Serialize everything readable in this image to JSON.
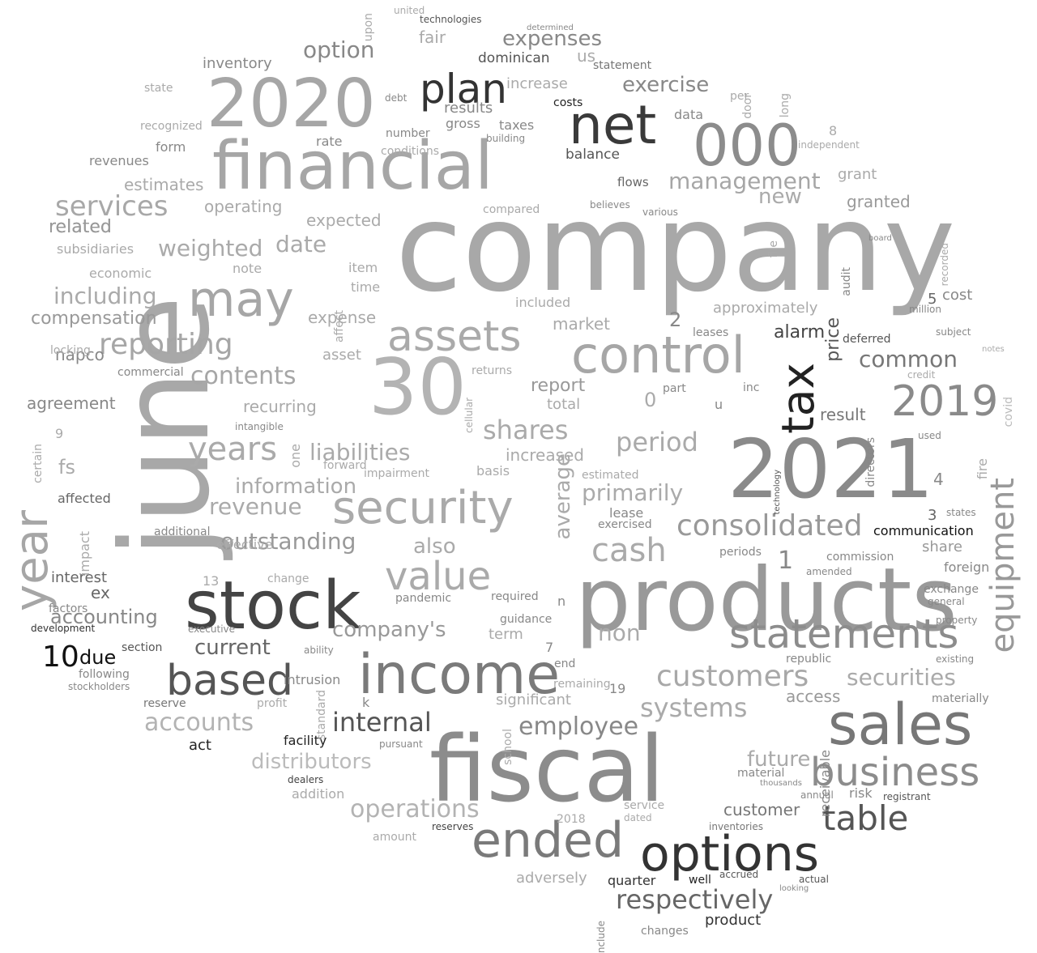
{
  "words": [
    {
      "text": "company",
      "color": "#a8a8a8"
    },
    {
      "text": "june",
      "color": "#a8a8a8"
    },
    {
      "text": "products",
      "color": "#999999"
    },
    {
      "text": "2021",
      "color": "#8a8a8a"
    },
    {
      "text": "fiscal",
      "color": "#8c8c8c"
    },
    {
      "text": "30",
      "color": "#b3b3b3"
    },
    {
      "text": "financial",
      "color": "#a6a6a6"
    },
    {
      "text": "2020",
      "color": "#a6a6a6"
    },
    {
      "text": "stock",
      "color": "#444444"
    },
    {
      "text": "income",
      "color": "#7a7a7a"
    },
    {
      "text": "sales",
      "color": "#777777"
    },
    {
      "text": "options",
      "color": "#333333"
    },
    {
      "text": "net",
      "color": "#3a3a3a"
    },
    {
      "text": "000",
      "color": "#8c8c8c"
    },
    {
      "text": "control",
      "color": "#a6a6a6"
    },
    {
      "text": "security",
      "color": "#aaaaaa"
    },
    {
      "text": "year",
      "color": "#a6a6a6"
    },
    {
      "text": "may",
      "color": "#a6a6a6"
    },
    {
      "text": "plan",
      "color": "#333333"
    },
    {
      "text": "tax",
      "color": "#222222"
    },
    {
      "text": "statements",
      "color": "#8c8c8c"
    },
    {
      "text": "ended",
      "color": "#7a7a7a"
    },
    {
      "text": "based",
      "color": "#555555"
    },
    {
      "text": "business",
      "color": "#8c8c8c"
    },
    {
      "text": "assets",
      "color": "#aaaaaa"
    },
    {
      "text": "value",
      "color": "#aaaaaa"
    },
    {
      "text": "2019",
      "color": "#8a8a8a"
    },
    {
      "text": "equipment",
      "color": "#999999"
    },
    {
      "text": "table",
      "color": "#555555"
    },
    {
      "text": "customers",
      "color": "#a8a8a8"
    },
    {
      "text": "years",
      "color": "#aaaaaa"
    },
    {
      "text": "consolidated",
      "color": "#999999"
    },
    {
      "text": "services",
      "color": "#a8a8a8"
    },
    {
      "text": "reporting",
      "color": "#a6a6a6"
    },
    {
      "text": "cash",
      "color": "#aaaaaa"
    },
    {
      "text": "systems",
      "color": "#aaaaaa"
    },
    {
      "text": "respectively",
      "color": "#666666"
    },
    {
      "text": "operations",
      "color": "#b3b3b3"
    },
    {
      "text": "accounts",
      "color": "#b3b3b3"
    },
    {
      "text": "internal",
      "color": "#555555"
    },
    {
      "text": "management",
      "color": "#a6a6a6"
    },
    {
      "text": "contents",
      "color": "#a6a6a6"
    },
    {
      "text": "period",
      "color": "#aaaaaa"
    },
    {
      "text": "securities",
      "color": "#aaaaaa"
    },
    {
      "text": "shares",
      "color": "#aaaaaa"
    },
    {
      "text": "expenses",
      "color": "#888888"
    },
    {
      "text": "exercise",
      "color": "#888888"
    },
    {
      "text": "including",
      "color": "#aaaaaa"
    },
    {
      "text": "outstanding",
      "color": "#999999"
    },
    {
      "text": "liabilities",
      "color": "#aaaaaa"
    },
    {
      "text": "employee",
      "color": "#888888"
    },
    {
      "text": "company's",
      "color": "#999999"
    },
    {
      "text": "common",
      "color": "#777777"
    },
    {
      "text": "revenue",
      "color": "#aaaaaa"
    },
    {
      "text": "date",
      "color": "#aaaaaa"
    },
    {
      "text": "weighted",
      "color": "#aaaaaa"
    },
    {
      "text": "information",
      "color": "#aaaaaa"
    },
    {
      "text": "distributors",
      "color": "#bbbbbb"
    },
    {
      "text": "option",
      "color": "#888888"
    },
    {
      "text": "average",
      "color": "#aaaaaa"
    },
    {
      "text": "future",
      "color": "#aaaaaa"
    },
    {
      "text": "primarily",
      "color": "#aaaaaa"
    },
    {
      "text": "non",
      "color": "#aaaaaa"
    },
    {
      "text": "current",
      "color": "#666666"
    },
    {
      "text": "also",
      "color": "#aaaaaa"
    },
    {
      "text": "fs",
      "color": "#aaaaaa"
    },
    {
      "text": "new",
      "color": "#aaaaaa"
    },
    {
      "text": "accounting",
      "color": "#888888"
    },
    {
      "text": "compensation",
      "color": "#999999"
    },
    {
      "text": "alarm",
      "color": "#444444"
    },
    {
      "text": "price",
      "color": "#555555"
    },
    {
      "text": "report",
      "color": "#999999"
    },
    {
      "text": "increased",
      "color": "#aaaaaa"
    },
    {
      "text": "expense",
      "color": "#aaaaaa"
    },
    {
      "text": "expected",
      "color": "#aaaaaa"
    },
    {
      "text": "market",
      "color": "#aaaaaa"
    },
    {
      "text": "approximately",
      "color": "#aaaaaa"
    },
    {
      "text": "access",
      "color": "#999999"
    },
    {
      "text": "customer",
      "color": "#777777"
    },
    {
      "text": "result",
      "color": "#777777"
    },
    {
      "text": "share",
      "color": "#999999"
    },
    {
      "text": "related",
      "color": "#999999"
    },
    {
      "text": "results",
      "color": "#888888"
    },
    {
      "text": "agreement",
      "color": "#888888"
    },
    {
      "text": "recurring",
      "color": "#aaaaaa"
    },
    {
      "text": "related",
      "color": "#999999"
    },
    {
      "text": "product",
      "color": "#333333"
    },
    {
      "text": "quarter",
      "color": "#333333"
    },
    {
      "text": "communication",
      "color": "#111111"
    },
    {
      "text": "facility",
      "color": "#222222"
    },
    {
      "text": "act",
      "color": "#222222"
    },
    {
      "text": "10",
      "color": "#111111"
    },
    {
      "text": "due",
      "color": "#111111"
    },
    {
      "text": "n",
      "color": "#888888"
    },
    {
      "text": "2018",
      "color": "#aaaaaa"
    },
    {
      "text": "1",
      "color": "#888888"
    },
    {
      "text": "0",
      "color": "#aaaaaa"
    },
    {
      "text": "2",
      "color": "#888888"
    },
    {
      "text": "4",
      "color": "#888888"
    },
    {
      "text": "3",
      "color": "#666666"
    },
    {
      "text": "5",
      "color": "#666666"
    },
    {
      "text": "7",
      "color": "#888888"
    },
    {
      "text": "8",
      "color": "#aaaaaa"
    },
    {
      "text": "9",
      "color": "#aaaaaa"
    },
    {
      "text": "13",
      "color": "#aaaaaa"
    },
    {
      "text": "19",
      "color": "#888888"
    },
    {
      "text": "k",
      "color": "#888888"
    },
    {
      "text": "u",
      "color": "#888888"
    },
    {
      "text": "us",
      "color": "#aaaaaa"
    },
    {
      "text": "fair",
      "color": "#aaaaaa"
    },
    {
      "text": "dominican",
      "color": "#555555"
    },
    {
      "text": "increase",
      "color": "#aaaaaa"
    },
    {
      "text": "statement",
      "color": "#777777"
    },
    {
      "text": "per",
      "color": "#aaaaaa"
    },
    {
      "text": "door",
      "color": "#aaaaaa"
    },
    {
      "text": "long",
      "color": "#aaaaaa"
    },
    {
      "text": "costs",
      "color": "#222222"
    },
    {
      "text": "taxes",
      "color": "#888888"
    },
    {
      "text": "gross",
      "color": "#888888"
    },
    {
      "text": "debt",
      "color": "#888888"
    },
    {
      "text": "number",
      "color": "#888888"
    },
    {
      "text": "conditions",
      "color": "#aaaaaa"
    },
    {
      "text": "building",
      "color": "#888888"
    },
    {
      "text": "balance",
      "color": "#555555"
    },
    {
      "text": "flows",
      "color": "#666666"
    },
    {
      "text": "data",
      "color": "#888888"
    },
    {
      "text": "independent",
      "color": "#aaaaaa"
    },
    {
      "text": "grant",
      "color": "#aaaaaa"
    },
    {
      "text": "granted",
      "color": "#999999"
    },
    {
      "text": "board",
      "color": "#888888"
    },
    {
      "text": "compared",
      "color": "#aaaaaa"
    },
    {
      "text": "believes",
      "color": "#888888"
    },
    {
      "text": "various",
      "color": "#888888"
    },
    {
      "text": "file",
      "color": "#aaaaaa"
    },
    {
      "text": "audit",
      "color": "#888888"
    },
    {
      "text": "cost",
      "color": "#888888"
    },
    {
      "text": "million",
      "color": "#888888"
    },
    {
      "text": "recorded",
      "color": "#aaaaaa"
    },
    {
      "text": "deferred",
      "color": "#555555"
    },
    {
      "text": "subject",
      "color": "#888888"
    },
    {
      "text": "credit",
      "color": "#aaaaaa"
    },
    {
      "text": "notes",
      "color": "#aaaaaa"
    },
    {
      "text": "used",
      "color": "#888888"
    },
    {
      "text": "covid",
      "color": "#bbbbbb"
    },
    {
      "text": "fire",
      "color": "#aaaaaa"
    },
    {
      "text": "states",
      "color": "#888888"
    },
    {
      "text": "foreign",
      "color": "#888888"
    },
    {
      "text": "commission",
      "color": "#888888"
    },
    {
      "text": "amended",
      "color": "#888888"
    },
    {
      "text": "exchange",
      "color": "#888888"
    },
    {
      "text": "general",
      "color": "#888888"
    },
    {
      "text": "property",
      "color": "#888888"
    },
    {
      "text": "existing",
      "color": "#888888"
    },
    {
      "text": "materially",
      "color": "#888888"
    },
    {
      "text": "republic",
      "color": "#888888"
    },
    {
      "text": "directors",
      "color": "#888888"
    },
    {
      "text": "risk",
      "color": "#888888"
    },
    {
      "text": "annual",
      "color": "#888888"
    },
    {
      "text": "registrant",
      "color": "#555555"
    },
    {
      "text": "thousands",
      "color": "#888888"
    },
    {
      "text": "material",
      "color": "#888888"
    },
    {
      "text": "receivable",
      "color": "#888888"
    },
    {
      "text": "inventories",
      "color": "#777777"
    },
    {
      "text": "service",
      "color": "#aaaaaa"
    },
    {
      "text": "dated",
      "color": "#aaaaaa"
    },
    {
      "text": "accrued",
      "color": "#555555"
    },
    {
      "text": "actual",
      "color": "#555555"
    },
    {
      "text": "well",
      "color": "#222222"
    },
    {
      "text": "looking",
      "color": "#888888"
    },
    {
      "text": "changes",
      "color": "#888888"
    },
    {
      "text": "adversely",
      "color": "#aaaaaa"
    },
    {
      "text": "amount",
      "color": "#aaaaaa"
    },
    {
      "text": "reserves",
      "color": "#444444"
    },
    {
      "text": "dealers",
      "color": "#444444"
    },
    {
      "text": "addition",
      "color": "#aaaaaa"
    },
    {
      "text": "pursuant",
      "color": "#888888"
    },
    {
      "text": "reserve",
      "color": "#777777"
    },
    {
      "text": "profit",
      "color": "#aaaaaa"
    },
    {
      "text": "intrusion",
      "color": "#888888"
    },
    {
      "text": "significant",
      "color": "#aaaaaa"
    },
    {
      "text": "remaining",
      "color": "#aaaaaa"
    },
    {
      "text": "end",
      "color": "#888888"
    },
    {
      "text": "term",
      "color": "#aaaaaa"
    },
    {
      "text": "guidance",
      "color": "#888888"
    },
    {
      "text": "required",
      "color": "#888888"
    },
    {
      "text": "pandemic",
      "color": "#888888"
    },
    {
      "text": "basis",
      "color": "#aaaaaa"
    },
    {
      "text": "estimated",
      "color": "#aaaaaa"
    },
    {
      "text": "lease",
      "color": "#888888"
    },
    {
      "text": "exercised",
      "color": "#888888"
    },
    {
      "text": "periods",
      "color": "#888888"
    },
    {
      "text": "total",
      "color": "#aaaaaa"
    },
    {
      "text": "part",
      "color": "#888888"
    },
    {
      "text": "inc",
      "color": "#888888"
    },
    {
      "text": "leases",
      "color": "#888888"
    },
    {
      "text": "included",
      "color": "#aaaaaa"
    },
    {
      "text": "returns",
      "color": "#aaaaaa"
    },
    {
      "text": "time",
      "color": "#aaaaaa"
    },
    {
      "text": "item",
      "color": "#aaaaaa"
    },
    {
      "text": "asset",
      "color": "#aaaaaa"
    },
    {
      "text": "note",
      "color": "#aaaaaa"
    },
    {
      "text": "operating",
      "color": "#aaaaaa"
    },
    {
      "text": "estimates",
      "color": "#aaaaaa"
    },
    {
      "text": "revenues",
      "color": "#888888"
    },
    {
      "text": "form",
      "color": "#888888"
    },
    {
      "text": "rate",
      "color": "#888888"
    },
    {
      "text": "recognized",
      "color": "#aaaaaa"
    },
    {
      "text": "inventory",
      "color": "#888888"
    },
    {
      "text": "state",
      "color": "#aaaaaa"
    },
    {
      "text": "subsidiaries",
      "color": "#aaaaaa"
    },
    {
      "text": "economic",
      "color": "#aaaaaa"
    },
    {
      "text": "napco",
      "color": "#888888"
    },
    {
      "text": "locking",
      "color": "#aaaaaa"
    },
    {
      "text": "commercial",
      "color": "#888888"
    },
    {
      "text": "interest",
      "color": "#666666"
    },
    {
      "text": "additional",
      "color": "#888888"
    },
    {
      "text": "impact",
      "color": "#aaaaaa"
    },
    {
      "text": "affected",
      "color": "#666666"
    },
    {
      "text": "factors",
      "color": "#888888"
    },
    {
      "text": "ex",
      "color": "#666666"
    },
    {
      "text": "section",
      "color": "#555555"
    },
    {
      "text": "following",
      "color": "#888888"
    },
    {
      "text": "development",
      "color": "#333333"
    },
    {
      "text": "stockholders",
      "color": "#888888"
    },
    {
      "text": "executive",
      "color": "#888888"
    },
    {
      "text": "change",
      "color": "#aaaaaa"
    },
    {
      "text": "effective",
      "color": "#aaaaaa"
    },
    {
      "text": "ability",
      "color": "#888888"
    },
    {
      "text": "intangible",
      "color": "#888888"
    },
    {
      "text": "forward",
      "color": "#aaaaaa"
    },
    {
      "text": "impairment",
      "color": "#aaaaaa"
    },
    {
      "text": "upon",
      "color": "#aaaaaa"
    },
    {
      "text": "united",
      "color": "#aaaaaa"
    },
    {
      "text": "technologies",
      "color": "#555555"
    },
    {
      "text": "determined",
      "color": "#888888"
    },
    {
      "text": "one",
      "color": "#aaaaaa"
    },
    {
      "text": "certain",
      "color": "#aaaaaa"
    },
    {
      "text": "affect",
      "color": "#aaaaaa"
    },
    {
      "text": "standard",
      "color": "#aaaaaa"
    },
    {
      "text": "school",
      "color": "#aaaaaa"
    },
    {
      "text": "cellular",
      "color": "#aaaaaa"
    },
    {
      "text": "include",
      "color": "#888888"
    },
    {
      "text": "technology",
      "color": "#555555"
    }
  ]
}
